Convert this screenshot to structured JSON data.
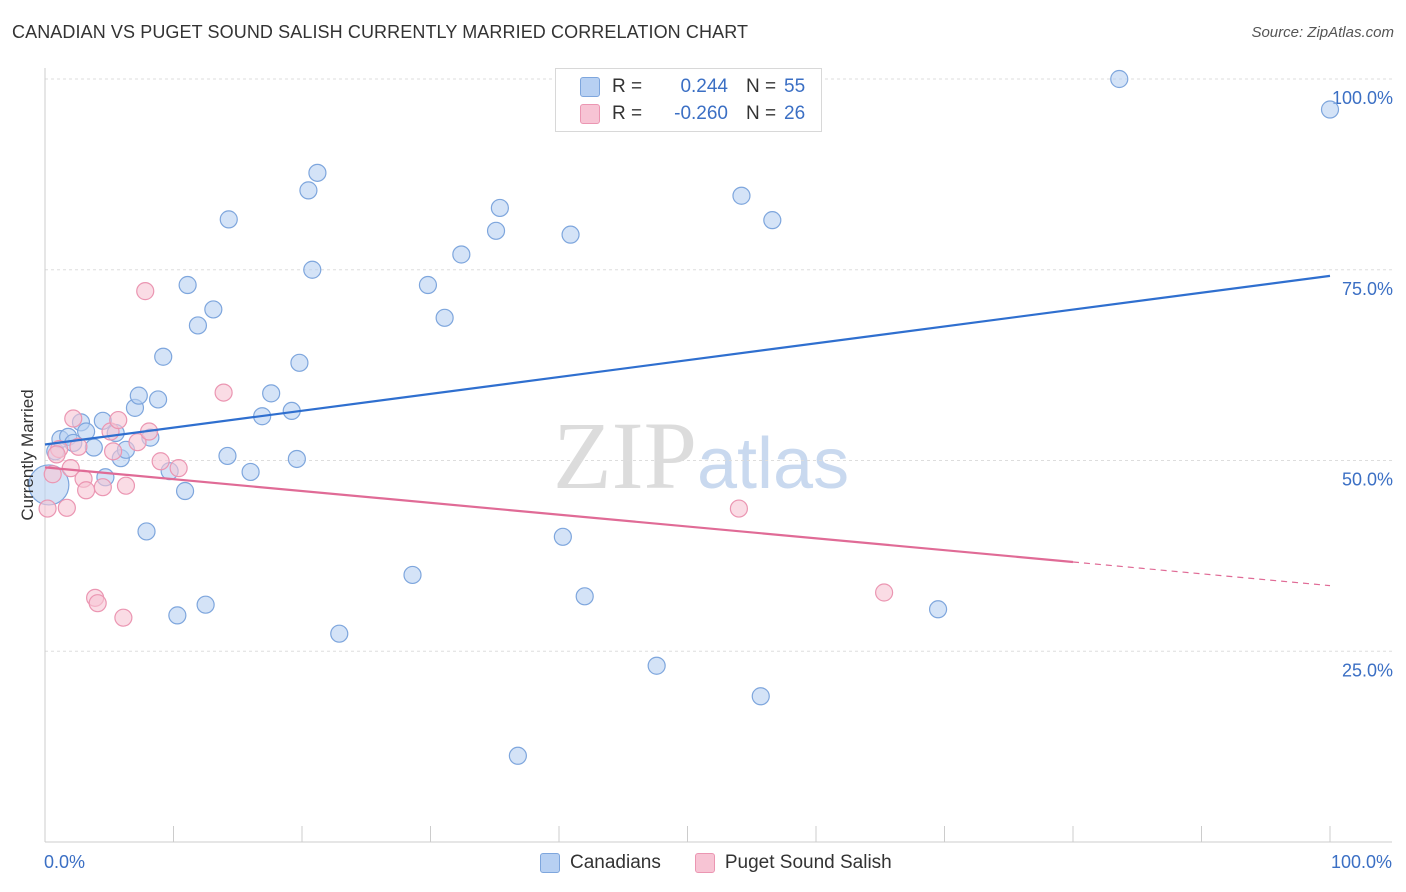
{
  "title": "CANADIAN VS PUGET SOUND SALISH CURRENTLY MARRIED CORRELATION CHART",
  "source": "Source: ZipAtlas.com",
  "legend": {
    "rows": [
      {
        "r_label": "R =",
        "r_value": "0.244",
        "n_label": "N =",
        "n_value": "55"
      },
      {
        "r_label": "R =",
        "r_value": "-0.260",
        "n_label": "N =",
        "n_value": "26"
      }
    ]
  },
  "watermark": {
    "zip": "ZIP",
    "atlas": "atlas"
  },
  "chart_data": {
    "type": "scatter",
    "title": "CANADIAN VS PUGET SOUND SALISH CURRENTLY MARRIED CORRELATION CHART",
    "xlabel": "",
    "ylabel": "Currently Married",
    "xlim": [
      0,
      100
    ],
    "ylim": [
      0,
      100
    ],
    "x_tick_labels": [
      "0.0%",
      "100.0%"
    ],
    "y_ticks": [
      25,
      50,
      75,
      100
    ],
    "y_tick_labels": [
      "25.0%",
      "50.0%",
      "75.0%",
      "100.0%"
    ],
    "grid": true,
    "colors": {
      "canadians_fill": "#b7d0f2",
      "canadians_stroke": "#7ea6dd",
      "canadians_line": "#2f6fcf",
      "salish_fill": "#f7c4d4",
      "salish_stroke": "#eb96b2",
      "salish_line": "#e06b96",
      "tick_text": "#3b6fc4"
    },
    "series": [
      {
        "name": "Canadians",
        "r": 0.244,
        "n": 55,
        "trend": {
          "x0": 0,
          "y0": 52.1,
          "x1": 100,
          "y1": 74.2
        },
        "points": [
          [
            0.3,
            46.8
          ],
          [
            0.8,
            51.2
          ],
          [
            1.2,
            52.8
          ],
          [
            1.8,
            53.1
          ],
          [
            2.2,
            52.3
          ],
          [
            2.8,
            55.0
          ],
          [
            3.2,
            53.8
          ],
          [
            3.8,
            51.7
          ],
          [
            4.5,
            55.2
          ],
          [
            4.7,
            47.8
          ],
          [
            5.5,
            53.6
          ],
          [
            5.9,
            50.3
          ],
          [
            6.3,
            51.4
          ],
          [
            7.0,
            56.9
          ],
          [
            7.3,
            58.5
          ],
          [
            7.9,
            40.7
          ],
          [
            8.2,
            53.0
          ],
          [
            8.8,
            58.0
          ],
          [
            9.2,
            63.6
          ],
          [
            9.7,
            48.6
          ],
          [
            10.3,
            29.7
          ],
          [
            10.9,
            46.0
          ],
          [
            11.1,
            73.0
          ],
          [
            11.9,
            67.7
          ],
          [
            12.5,
            31.1
          ],
          [
            13.1,
            69.8
          ],
          [
            14.3,
            81.6
          ],
          [
            14.2,
            50.6
          ],
          [
            16.0,
            48.5
          ],
          [
            16.9,
            55.8
          ],
          [
            17.6,
            58.8
          ],
          [
            19.2,
            56.5
          ],
          [
            19.6,
            50.2
          ],
          [
            19.8,
            62.8
          ],
          [
            20.5,
            85.4
          ],
          [
            20.8,
            75.0
          ],
          [
            21.2,
            87.7
          ],
          [
            22.9,
            27.3
          ],
          [
            28.6,
            35.0
          ],
          [
            29.8,
            73.0
          ],
          [
            31.1,
            68.7
          ],
          [
            32.4,
            77.0
          ],
          [
            35.1,
            80.1
          ],
          [
            35.4,
            83.1
          ],
          [
            36.8,
            11.3
          ],
          [
            40.3,
            40.0
          ],
          [
            40.9,
            79.6
          ],
          [
            42.0,
            32.2
          ],
          [
            47.6,
            23.1
          ],
          [
            54.2,
            84.7
          ],
          [
            55.7,
            19.1
          ],
          [
            56.6,
            81.5
          ],
          [
            69.5,
            30.5
          ],
          [
            83.6,
            100.0
          ],
          [
            100.0,
            96.0
          ]
        ]
      },
      {
        "name": "Puget Sound Salish",
        "r": -0.26,
        "n": 26,
        "trend": {
          "x0": 0,
          "y0": 49.1,
          "x1": 80,
          "y1": 36.7,
          "dash_to_x": 100,
          "dash_to_y": 33.6
        },
        "points": [
          [
            0.2,
            43.7
          ],
          [
            0.6,
            48.2
          ],
          [
            1.1,
            51.5
          ],
          [
            1.7,
            43.8
          ],
          [
            2.0,
            49.0
          ],
          [
            2.2,
            55.5
          ],
          [
            2.6,
            51.8
          ],
          [
            3.0,
            47.6
          ],
          [
            3.2,
            46.1
          ],
          [
            3.9,
            32.0
          ],
          [
            4.1,
            31.3
          ],
          [
            4.5,
            46.5
          ],
          [
            5.1,
            53.8
          ],
          [
            5.3,
            51.2
          ],
          [
            5.7,
            55.3
          ],
          [
            6.1,
            29.4
          ],
          [
            6.3,
            46.7
          ],
          [
            7.2,
            52.4
          ],
          [
            7.8,
            72.2
          ],
          [
            8.1,
            53.8
          ],
          [
            9.0,
            49.9
          ],
          [
            10.4,
            49.0
          ],
          [
            13.9,
            58.9
          ],
          [
            54.0,
            43.7
          ],
          [
            65.3,
            32.7
          ],
          [
            0.9,
            50.8
          ]
        ]
      }
    ]
  },
  "bottom_legend": [
    {
      "label": "Canadians"
    },
    {
      "label": "Puget Sound Salish"
    }
  ]
}
